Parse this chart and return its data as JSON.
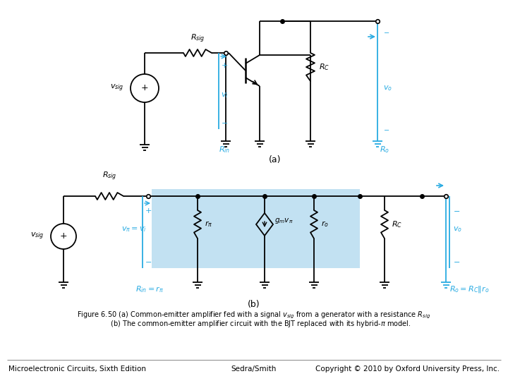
{
  "footer_left": "Microelectronic Circuits, Sixth Edition",
  "footer_center": "Sedra/Smith",
  "footer_right": "Copyright © 2010 by Oxford University Press, Inc.",
  "cyan_color": "#29ABE2",
  "black_color": "#000000",
  "bg_highlight": "#A8D8EA",
  "fig_width": 7.2,
  "fig_height": 5.4
}
